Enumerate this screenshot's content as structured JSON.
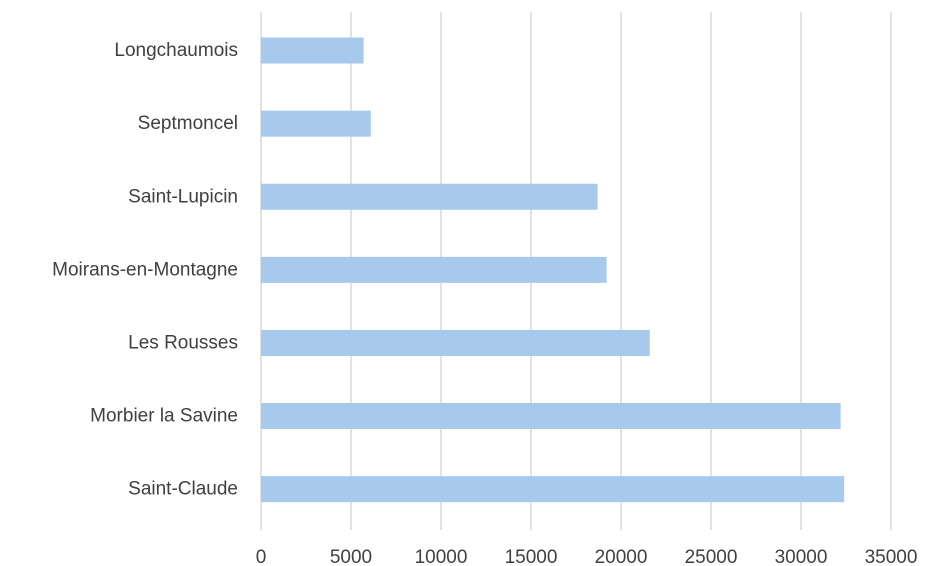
{
  "chart_data": {
    "type": "bar",
    "orientation": "horizontal",
    "categories": [
      "Longchaumois",
      "Septmoncel",
      "Saint-Lupicin",
      "Moirans-en-Montagne",
      "Les Rousses",
      "Morbier la Savine",
      "Saint-Claude"
    ],
    "values": [
      5700,
      6100,
      18700,
      19200,
      21600,
      32200,
      32400
    ],
    "xlim": [
      0,
      35000
    ],
    "xticks": [
      0,
      5000,
      10000,
      15000,
      20000,
      25000,
      30000,
      35000
    ],
    "title": "",
    "xlabel": "",
    "ylabel": "",
    "grid": "vertical",
    "legend": "none",
    "bar_color": "#a6c9ec",
    "grid_color": "#d9d9d9",
    "text_color": "#404040"
  }
}
